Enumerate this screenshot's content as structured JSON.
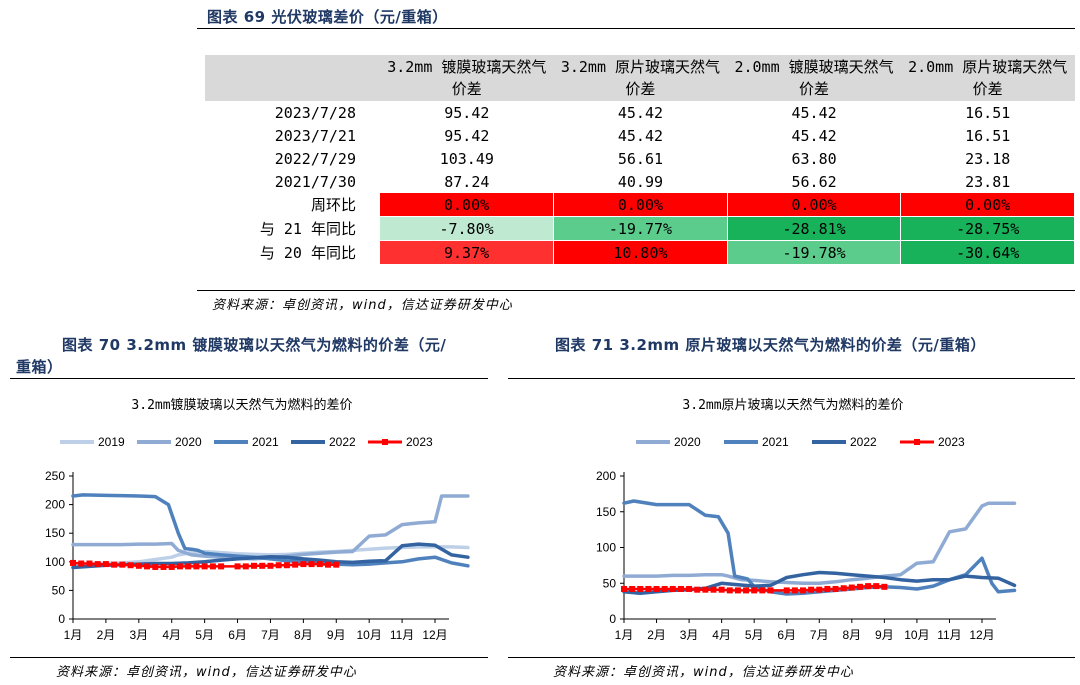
{
  "fig69": {
    "title": "图表 69 光伏玻璃差价（元/重箱）",
    "headers": [
      "",
      "3.2mm 镀膜玻璃天然气价差",
      "3.2mm 原片玻璃天然气价差",
      "2.0mm 镀膜玻璃天然气价差",
      "2.0mm 原片玻璃天然气价差"
    ],
    "rows": [
      {
        "label": "2023/7/28",
        "cells": [
          "95.42",
          "45.42",
          "45.42",
          "16.51"
        ]
      },
      {
        "label": "2023/7/21",
        "cells": [
          "95.42",
          "45.42",
          "45.42",
          "16.51"
        ]
      },
      {
        "label": "2022/7/29",
        "cells": [
          "103.49",
          "56.61",
          "63.80",
          "23.18"
        ]
      },
      {
        "label": "2021/7/30",
        "cells": [
          "87.24",
          "40.99",
          "56.62",
          "23.81"
        ]
      },
      {
        "label": "周环比",
        "cells": [
          "0.00%",
          "0.00%",
          "0.00%",
          "0.00%"
        ],
        "colors": [
          "#ff0000",
          "#ff0000",
          "#ff0000",
          "#ff0000"
        ]
      },
      {
        "label": "与 21 年同比",
        "cells": [
          "-7.80%",
          "-19.77%",
          "-28.81%",
          "-28.75%"
        ],
        "colors": [
          "#bfe9d0",
          "#5ccc8c",
          "#18b25a",
          "#18b25a"
        ]
      },
      {
        "label": "与 20 年同比",
        "cells": [
          "9.37%",
          "10.80%",
          "-19.78%",
          "-30.64%"
        ],
        "colors": [
          "#ff3030",
          "#ff0000",
          "#5ccc8c",
          "#18b25a"
        ]
      }
    ],
    "source": "资料来源：卓创资讯，wind，信达证券研发中心"
  },
  "fig70": {
    "title": "图表 70 3.2mm 镀膜玻璃以天然气为燃料的价差（元/重箱）",
    "title_line1": "图表 70 3.2mm 镀膜玻璃以天然气为燃料的价差（元/",
    "title_line2": "重箱）",
    "source": "资料来源：卓创资讯，wind，信达证券研发中心"
  },
  "fig71": {
    "title": "图表 71 3.2mm 原片玻璃以天然气为燃料的价差（元/重箱）",
    "source": "资料来源：卓创资讯，wind，信达证券研发中心"
  },
  "chart_data": [
    {
      "type": "line",
      "title": "3.2mm镀膜玻璃以天然气为燃料的差价",
      "categories": [
        "1月",
        "2月",
        "3月",
        "4月",
        "5月",
        "6月",
        "7月",
        "8月",
        "9月",
        "10月",
        "11月",
        "12月"
      ],
      "ylim": [
        0,
        250
      ],
      "yticks": [
        0,
        50,
        100,
        150,
        200,
        250
      ],
      "legend_position": "top",
      "grid": false,
      "series": [
        {
          "name": "2019",
          "color": "#bdd0e8",
          "width": 3,
          "x": [
            0,
            0.5,
            1,
            1.5,
            2,
            2.5,
            3,
            3.2,
            3.6,
            4,
            4.5,
            5,
            5.5,
            6,
            6.5,
            7,
            7.5,
            8,
            8.5,
            9,
            9.5,
            10,
            10.5,
            11,
            11.5,
            12
          ],
          "y": [
            95,
            96,
            97,
            98,
            100,
            104,
            108,
            112,
            116,
            118,
            116,
            114,
            113,
            112,
            113,
            115,
            117,
            118,
            120,
            122,
            124,
            125,
            126,
            126,
            126,
            125
          ]
        },
        {
          "name": "2020",
          "color": "#8fabd4",
          "width": 3,
          "x": [
            0,
            0.5,
            1,
            1.5,
            2,
            2.5,
            3,
            3.2,
            3.6,
            4,
            4.5,
            5,
            5.5,
            6,
            6.5,
            7,
            7.5,
            8,
            8.5,
            9,
            9.5,
            10,
            10.5,
            11,
            11.2,
            11.5,
            12
          ],
          "y": [
            130,
            130,
            130,
            130,
            131,
            131,
            132,
            120,
            112,
            110,
            108,
            106,
            105,
            107,
            110,
            113,
            115,
            117,
            118,
            145,
            147,
            165,
            168,
            170,
            215,
            215,
            215
          ]
        },
        {
          "name": "2021",
          "color": "#4f81bd",
          "width": 3,
          "x": [
            0,
            0.3,
            1,
            2,
            2.5,
            2.9,
            3.2,
            3.4,
            3.6,
            3.8,
            4,
            4.5,
            5,
            5.5,
            6,
            6.5,
            7,
            7.5,
            8,
            8.5,
            9,
            9.5,
            10,
            10.5,
            11,
            11.5,
            12
          ],
          "y": [
            215,
            217,
            216,
            215,
            214,
            200,
            150,
            123,
            122,
            120,
            115,
            112,
            110,
            108,
            105,
            102,
            100,
            97,
            96,
            95,
            96,
            98,
            100,
            105,
            108,
            98,
            93
          ]
        },
        {
          "name": "2022",
          "color": "#3363a0",
          "width": 3,
          "x": [
            0,
            0.5,
            1,
            1.5,
            2,
            2.5,
            3,
            3.5,
            4,
            4.5,
            5,
            5.5,
            6,
            6.5,
            7,
            7.5,
            8,
            8.5,
            9,
            9.5,
            10,
            10.5,
            11,
            11.5,
            12
          ],
          "y": [
            90,
            92,
            94,
            95,
            96,
            97,
            97,
            98,
            100,
            103,
            105,
            107,
            109,
            108,
            105,
            103,
            100,
            99,
            101,
            102,
            128,
            131,
            129,
            112,
            108
          ]
        },
        {
          "name": "2023",
          "color": "#ff0000",
          "width": 2,
          "marker": "square",
          "x": [
            0,
            0.25,
            0.5,
            0.75,
            1,
            1.25,
            1.5,
            1.75,
            2,
            2.25,
            2.5,
            2.75,
            3,
            3.25,
            3.5,
            3.75,
            4,
            4.25,
            4.5,
            5,
            5.25,
            5.5,
            5.75,
            6,
            6.25,
            6.5,
            6.75,
            7,
            7.25,
            7.5,
            7.75,
            8
          ],
          "y": [
            98,
            97,
            97,
            96,
            96,
            95,
            95,
            94,
            93,
            92,
            91,
            91,
            91,
            92,
            92,
            92,
            92,
            92,
            92,
            92,
            92,
            93,
            93,
            93,
            94,
            94,
            95,
            96,
            96,
            96,
            95,
            95
          ]
        }
      ]
    },
    {
      "type": "line",
      "title": "3.2mm原片玻璃以天然气为燃料的差价",
      "categories": [
        "1月",
        "2月",
        "3月",
        "4月",
        "5月",
        "6月",
        "7月",
        "8月",
        "9月",
        "10月",
        "11月",
        "12月"
      ],
      "ylim": [
        0,
        200
      ],
      "yticks": [
        0,
        50,
        100,
        150,
        200
      ],
      "legend_position": "top",
      "grid": false,
      "series": [
        {
          "name": "2020",
          "color": "#8fabd4",
          "width": 3,
          "x": [
            0,
            0.5,
            1,
            1.5,
            2,
            2.5,
            3,
            3.2,
            3.6,
            4,
            4.5,
            5,
            5.5,
            6,
            6.5,
            7,
            7.5,
            8,
            8.5,
            9,
            9.5,
            10,
            10.5,
            11,
            11.2,
            11.5,
            12
          ],
          "y": [
            60,
            60,
            60,
            61,
            61,
            62,
            62,
            60,
            55,
            54,
            52,
            51,
            50,
            50,
            52,
            55,
            57,
            60,
            62,
            78,
            80,
            122,
            126,
            158,
            162,
            162,
            162
          ]
        },
        {
          "name": "2021",
          "color": "#4f81bd",
          "width": 3,
          "x": [
            0,
            0.3,
            1,
            2,
            2.5,
            2.9,
            3.2,
            3.4,
            3.6,
            3.8,
            4,
            4.5,
            5,
            5.5,
            6,
            6.5,
            7,
            7.5,
            8,
            8.5,
            9,
            9.5,
            10,
            10.5,
            11,
            11.3,
            11.5,
            12
          ],
          "y": [
            162,
            165,
            160,
            160,
            145,
            143,
            120,
            60,
            58,
            56,
            45,
            38,
            35,
            36,
            38,
            40,
            42,
            44,
            45,
            44,
            42,
            46,
            55,
            62,
            85,
            50,
            38,
            40
          ]
        },
        {
          "name": "2022",
          "color": "#3363a0",
          "width": 3,
          "x": [
            0,
            0.5,
            1,
            1.5,
            2,
            2.5,
            3,
            3.5,
            4,
            4.5,
            5,
            5.5,
            6,
            6.5,
            7,
            7.5,
            8,
            8.5,
            9,
            9.5,
            10,
            10.5,
            11,
            11.5,
            12
          ],
          "y": [
            38,
            36,
            38,
            40,
            41,
            43,
            50,
            48,
            46,
            47,
            58,
            62,
            65,
            64,
            62,
            60,
            58,
            55,
            53,
            55,
            55,
            60,
            58,
            57,
            47
          ]
        },
        {
          "name": "2023",
          "color": "#ff0000",
          "width": 2,
          "marker": "square",
          "x": [
            0,
            0.25,
            0.5,
            0.75,
            1,
            1.25,
            1.5,
            1.75,
            2,
            2.25,
            2.5,
            2.75,
            3,
            3.25,
            3.5,
            3.75,
            4,
            4.25,
            4.5,
            5,
            5.25,
            5.5,
            5.75,
            6,
            6.25,
            6.5,
            6.75,
            7,
            7.25,
            7.5,
            7.75,
            8
          ],
          "y": [
            42,
            42,
            42,
            42,
            42,
            42,
            42,
            42,
            42,
            41,
            41,
            41,
            41,
            40,
            40,
            40,
            40,
            40,
            40,
            40,
            40,
            40,
            41,
            41,
            42,
            42,
            43,
            44,
            45,
            46,
            46,
            45
          ]
        }
      ]
    }
  ]
}
